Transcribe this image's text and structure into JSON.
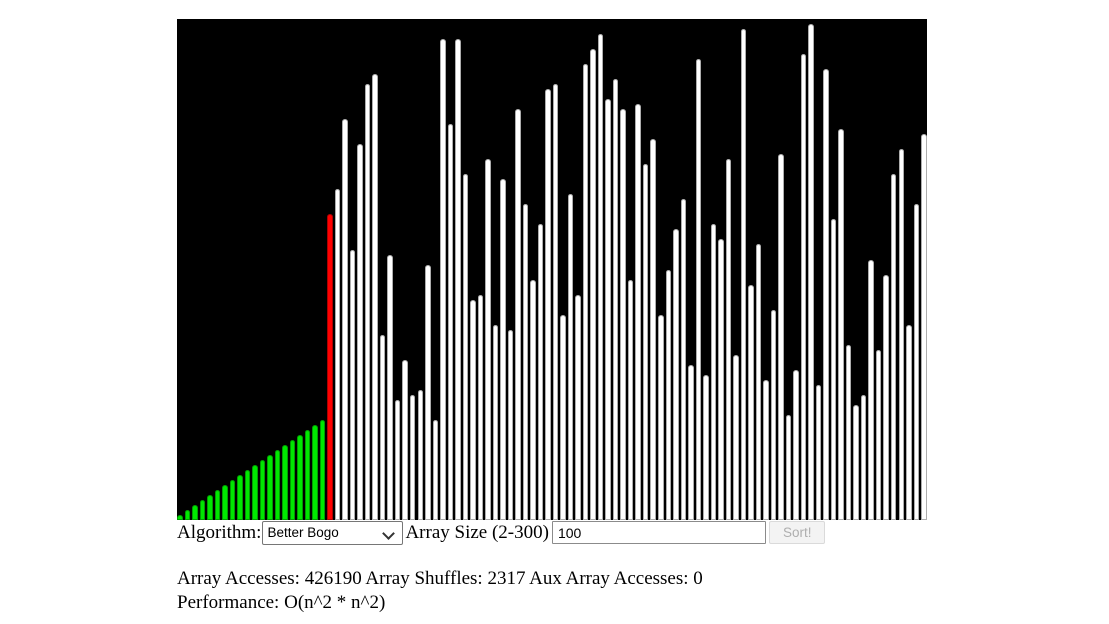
{
  "visualizer": {
    "colors": {
      "canvas_bg": "#000000",
      "sorted": "#00e800",
      "current": "#ff0000",
      "unsorted": "#ffffff"
    },
    "sorted_prefix_count": 20,
    "current_index": 20,
    "max_value": 100,
    "values": [
      1,
      2,
      3,
      4,
      5,
      6,
      7,
      8,
      9,
      10,
      11,
      12,
      13,
      14,
      15,
      16,
      17,
      18,
      19,
      20,
      61,
      66,
      80,
      54,
      75,
      87,
      89,
      37,
      53,
      24,
      32,
      25,
      26,
      51,
      20,
      96,
      79,
      96,
      69,
      44,
      45,
      72,
      39,
      68,
      38,
      82,
      63,
      48,
      59,
      86,
      87,
      41,
      65,
      45,
      91,
      94,
      97,
      84,
      88,
      82,
      48,
      83,
      71,
      76,
      41,
      50,
      58,
      64,
      31,
      92,
      29,
      59,
      56,
      72,
      33,
      98,
      47,
      55,
      28,
      42,
      73,
      21,
      30,
      93,
      99,
      27,
      90,
      60,
      78,
      35,
      23,
      25,
      52,
      34,
      49,
      69,
      74,
      39,
      63,
      77
    ]
  },
  "controls": {
    "algorithm_label": "Algorithm:",
    "algorithm_select": {
      "value": "Better Bogo"
    },
    "array_size_label": "Array Size (2-300)",
    "array_size_input": {
      "value": "100"
    },
    "sort_button": {
      "label": "Sort!",
      "disabled": true
    }
  },
  "stats": {
    "array_accesses_label": "Array Accesses:",
    "array_accesses_value": "426190",
    "array_shuffles_label": "Array Shuffles:",
    "array_shuffles_value": "2317",
    "aux_accesses_label": "Aux Array Accesses:",
    "aux_accesses_value": "0",
    "performance_label": "Performance:",
    "performance_value": "O(n^2 * n^2)"
  }
}
